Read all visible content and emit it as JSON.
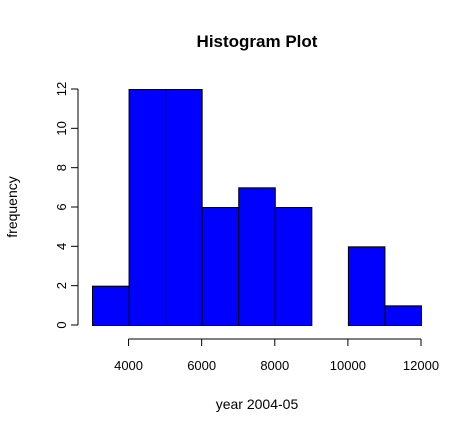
{
  "chart_data": {
    "type": "histogram",
    "title": "Histogram Plot",
    "xlabel": "year 2004-05",
    "ylabel": "frequency",
    "bins": [
      {
        "start": 3000,
        "end": 4000,
        "count": 2
      },
      {
        "start": 4000,
        "end": 5000,
        "count": 12
      },
      {
        "start": 5000,
        "end": 6000,
        "count": 12
      },
      {
        "start": 6000,
        "end": 7000,
        "count": 6
      },
      {
        "start": 7000,
        "end": 8000,
        "count": 7
      },
      {
        "start": 8000,
        "end": 9000,
        "count": 6
      },
      {
        "start": 9000,
        "end": 10000,
        "count": 0
      },
      {
        "start": 10000,
        "end": 11000,
        "count": 4
      },
      {
        "start": 11000,
        "end": 12000,
        "count": 1
      }
    ],
    "xlim": [
      3000,
      12000
    ],
    "ylim": [
      0,
      12
    ],
    "x_ticks": [
      "4000",
      "6000",
      "8000",
      "10000",
      "12000"
    ],
    "y_ticks": [
      "0",
      "2",
      "4",
      "6",
      "8",
      "10",
      "12"
    ],
    "bar_color": "#0000ff",
    "grid": false
  }
}
